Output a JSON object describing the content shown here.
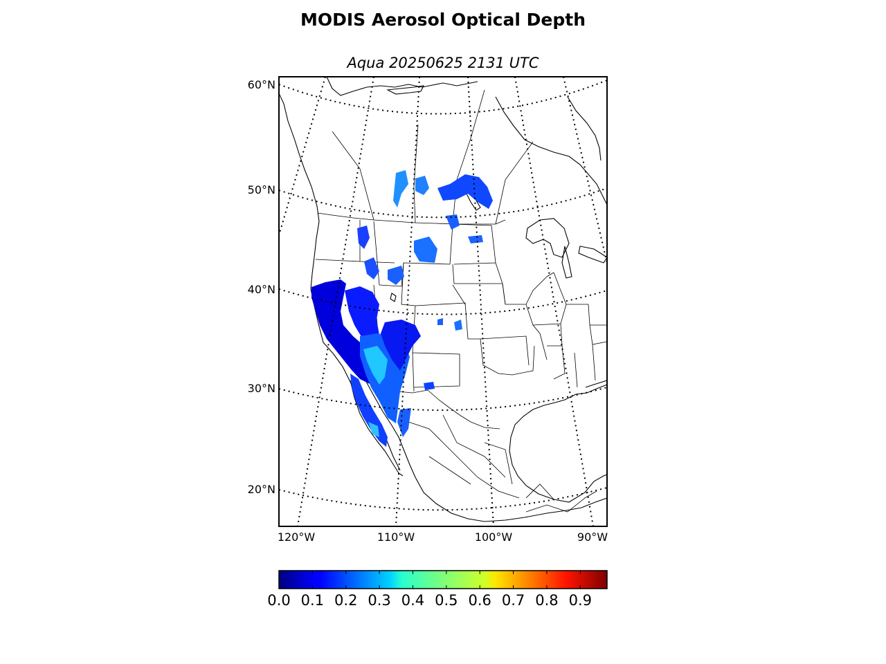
{
  "title": "MODIS Aerosol Optical Depth",
  "subtitle": "Aqua 20250625 2131 UTC",
  "map": {
    "lat_labels": [
      {
        "text": "60°N"
      },
      {
        "text": "50°N"
      },
      {
        "text": "40°N"
      },
      {
        "text": "30°N"
      },
      {
        "text": "20°N"
      }
    ],
    "lon_labels": [
      {
        "text": "120°W"
      },
      {
        "text": "110°W"
      },
      {
        "text": "100°W"
      },
      {
        "text": "90°W"
      }
    ]
  },
  "colorbar": {
    "colormap": "jet",
    "range": [
      0.0,
      0.98
    ],
    "tick_labels": [
      "0.0",
      "0.1",
      "0.2",
      "0.3",
      "0.4",
      "0.5",
      "0.6",
      "0.7",
      "0.8",
      "0.9"
    ]
  }
}
